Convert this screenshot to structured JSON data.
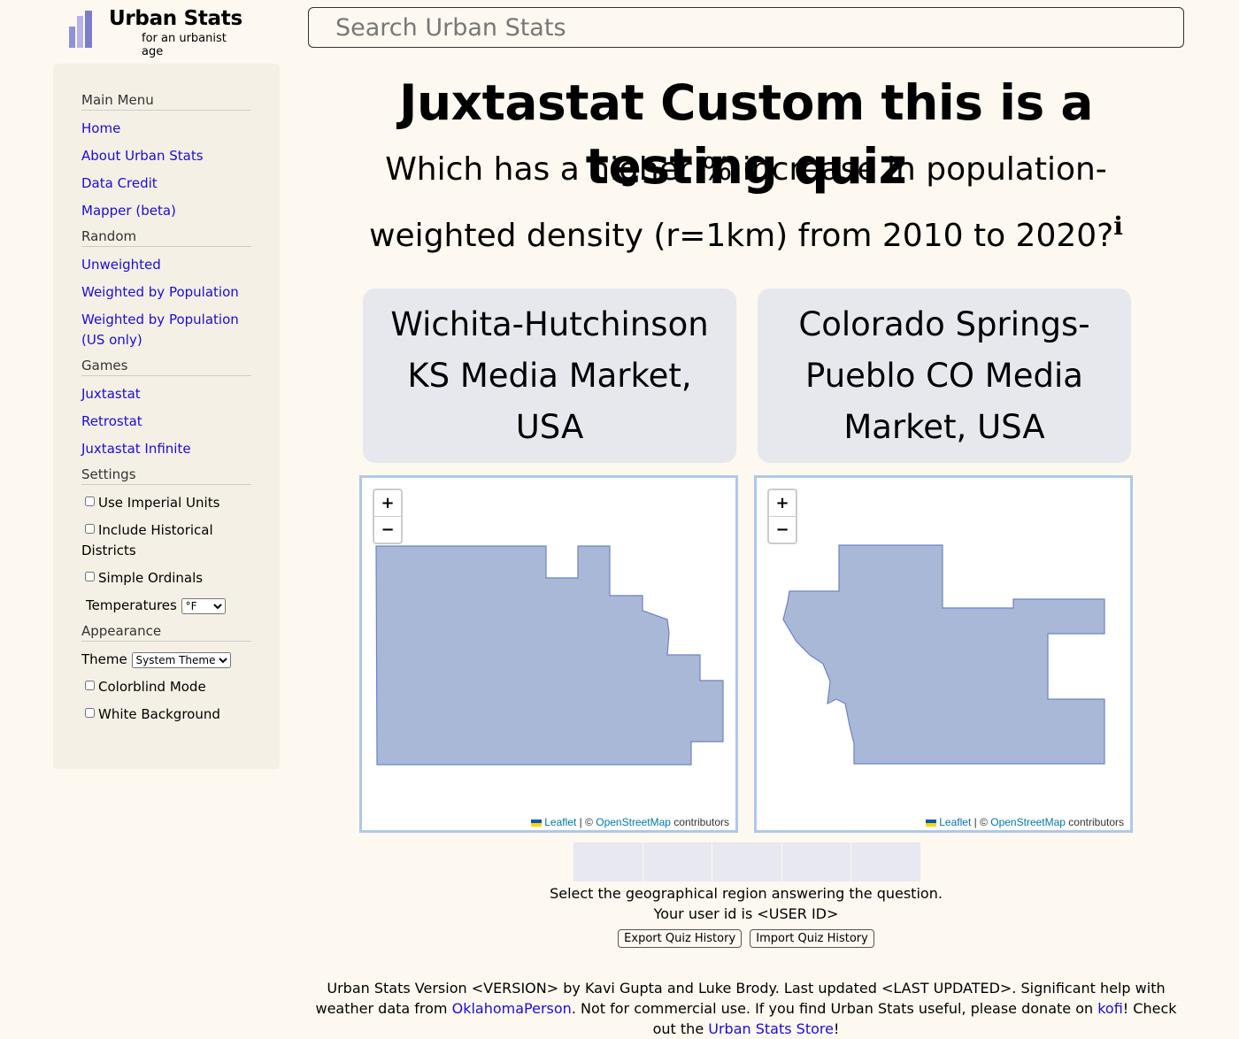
{
  "header": {
    "title": "Urban Stats",
    "subtitle": "for an urbanist age",
    "search_placeholder": "Search Urban Stats"
  },
  "sidebar": {
    "main_menu": "Main Menu",
    "home": "Home",
    "about": "About Urban Stats",
    "data_credit": "Data Credit",
    "mapper": "Mapper (beta)",
    "random": "Random",
    "unweighted": "Unweighted",
    "weighted_pop": "Weighted by Population",
    "weighted_pop_us": "Weighted by Population (US only)",
    "games": "Games",
    "juxtastat": "Juxtastat",
    "retrostat": "Retrostat",
    "juxtastat_infinite": "Juxtastat Infinite",
    "settings": "Settings",
    "imperial": "Use Imperial Units",
    "historical": "Include Historical Districts",
    "ordinals": "Simple Ordinals",
    "temperatures": "Temperatures",
    "temp_value": "°F",
    "appearance": "Appearance",
    "theme": "Theme",
    "theme_value": "System Theme",
    "colorblind": "Colorblind Mode",
    "white_bg": "White Background"
  },
  "main": {
    "title": "Juxtastat Custom this is a testing quiz",
    "question": "Which has a higher % increase in population-weighted density (r=1km) from 2010 to 2020?",
    "info_marker": "i",
    "choice_a": "Wichita-Hutchinson KS Media Market, USA",
    "choice_b": "Colorado Springs-Pueblo CO Media Market, USA",
    "zoom_in": "+",
    "zoom_out": "−",
    "attribution": {
      "leaflet": "Leaflet",
      "sep": " | © ",
      "osm": "OpenStreetMap",
      "contrib": " contributors"
    },
    "region_fill": "#aab8d8",
    "region_stroke": "#6b83c4",
    "hint": "Select the geographical region answering the question.",
    "user_id": "Your user id is <USER ID>",
    "export_btn": "Export Quiz History",
    "import_btn": "Import Quiz History"
  },
  "footer": {
    "text1": "Urban Stats Version <VERSION> by Kavi Gupta and Luke Brody. Last updated <LAST UPDATED>. Significant help with weather data from ",
    "link1": "OklahomaPerson",
    "text2": ". Not for commercial use. If you find Urban Stats useful, please donate on ",
    "link2": "kofi",
    "text3": "! Check out the ",
    "link3": "Urban Stats Store",
    "text4": "!"
  }
}
